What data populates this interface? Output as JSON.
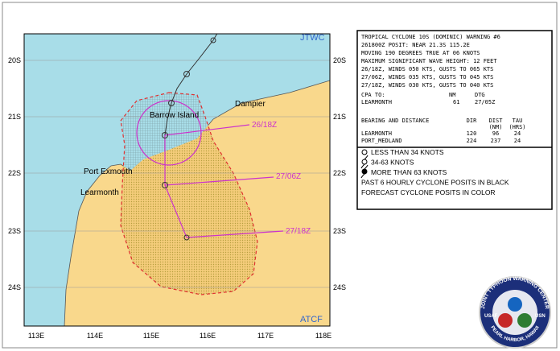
{
  "map": {
    "corner_labels": {
      "top_right": "JTWC",
      "bottom_right": "ATCF"
    },
    "lat_labels": [
      "20S",
      "21S",
      "22S",
      "23S",
      "24S"
    ],
    "lon_labels": [
      "113E",
      "114E",
      "115E",
      "116E",
      "117E",
      "118E"
    ],
    "places": [
      "Dampier",
      "Barrow Island",
      "Port Exmouth",
      "Learmonth"
    ],
    "forecast_labels": [
      "26/18Z",
      "27/06Z",
      "27/18Z"
    ]
  },
  "warning": {
    "lines": [
      "TROPICAL CYCLONE 10S (DOMINIC) WARNING #6",
      "261800Z POSIT: NEAR 21.3S 115.2E",
      "MOVING 190 DEGREES TRUE AT 06 KNOTS",
      "MAXIMUM SIGNIFICANT WAVE HEIGHT: 12 FEET",
      "26/18Z, WINDS 050 KTS, GUSTS TO 065 KTS",
      "27/06Z, WINDS 035 KTS, GUSTS TO 045 KTS",
      "27/18Z, WINDS 030 KTS, GUSTS TO 040 KTS"
    ]
  },
  "cpa": {
    "header": [
      "CPA TO:",
      "NM",
      "DTG"
    ],
    "row": [
      "LEARMONTH",
      "61",
      "27/05Z"
    ]
  },
  "bearing": {
    "header": [
      "BEARING AND DISTANCE",
      "DIR",
      "DIST",
      "TAU"
    ],
    "units": [
      "(NM)",
      "(HRS)"
    ],
    "rows": [
      [
        "LEARMONTH",
        "120",
        "96",
        "24"
      ],
      [
        "PORT_MEDLAND",
        "224",
        "237",
        "24"
      ]
    ]
  },
  "legend": {
    "items": [
      "LESS THAN 34 KNOTS",
      "34-63 KNOTS",
      "MORE THAN 63 KNOTS",
      "PAST 6 HOURLY CYCLONE POSITS IN BLACK",
      "FORECAST CYCLONE POSITS IN COLOR"
    ]
  },
  "logo": {
    "ring": "JOINT TYPHOON WARNING CENTER",
    "left": "USAF",
    "right": "USN",
    "bottom": "PEARL HARBOR, HAWAII"
  }
}
